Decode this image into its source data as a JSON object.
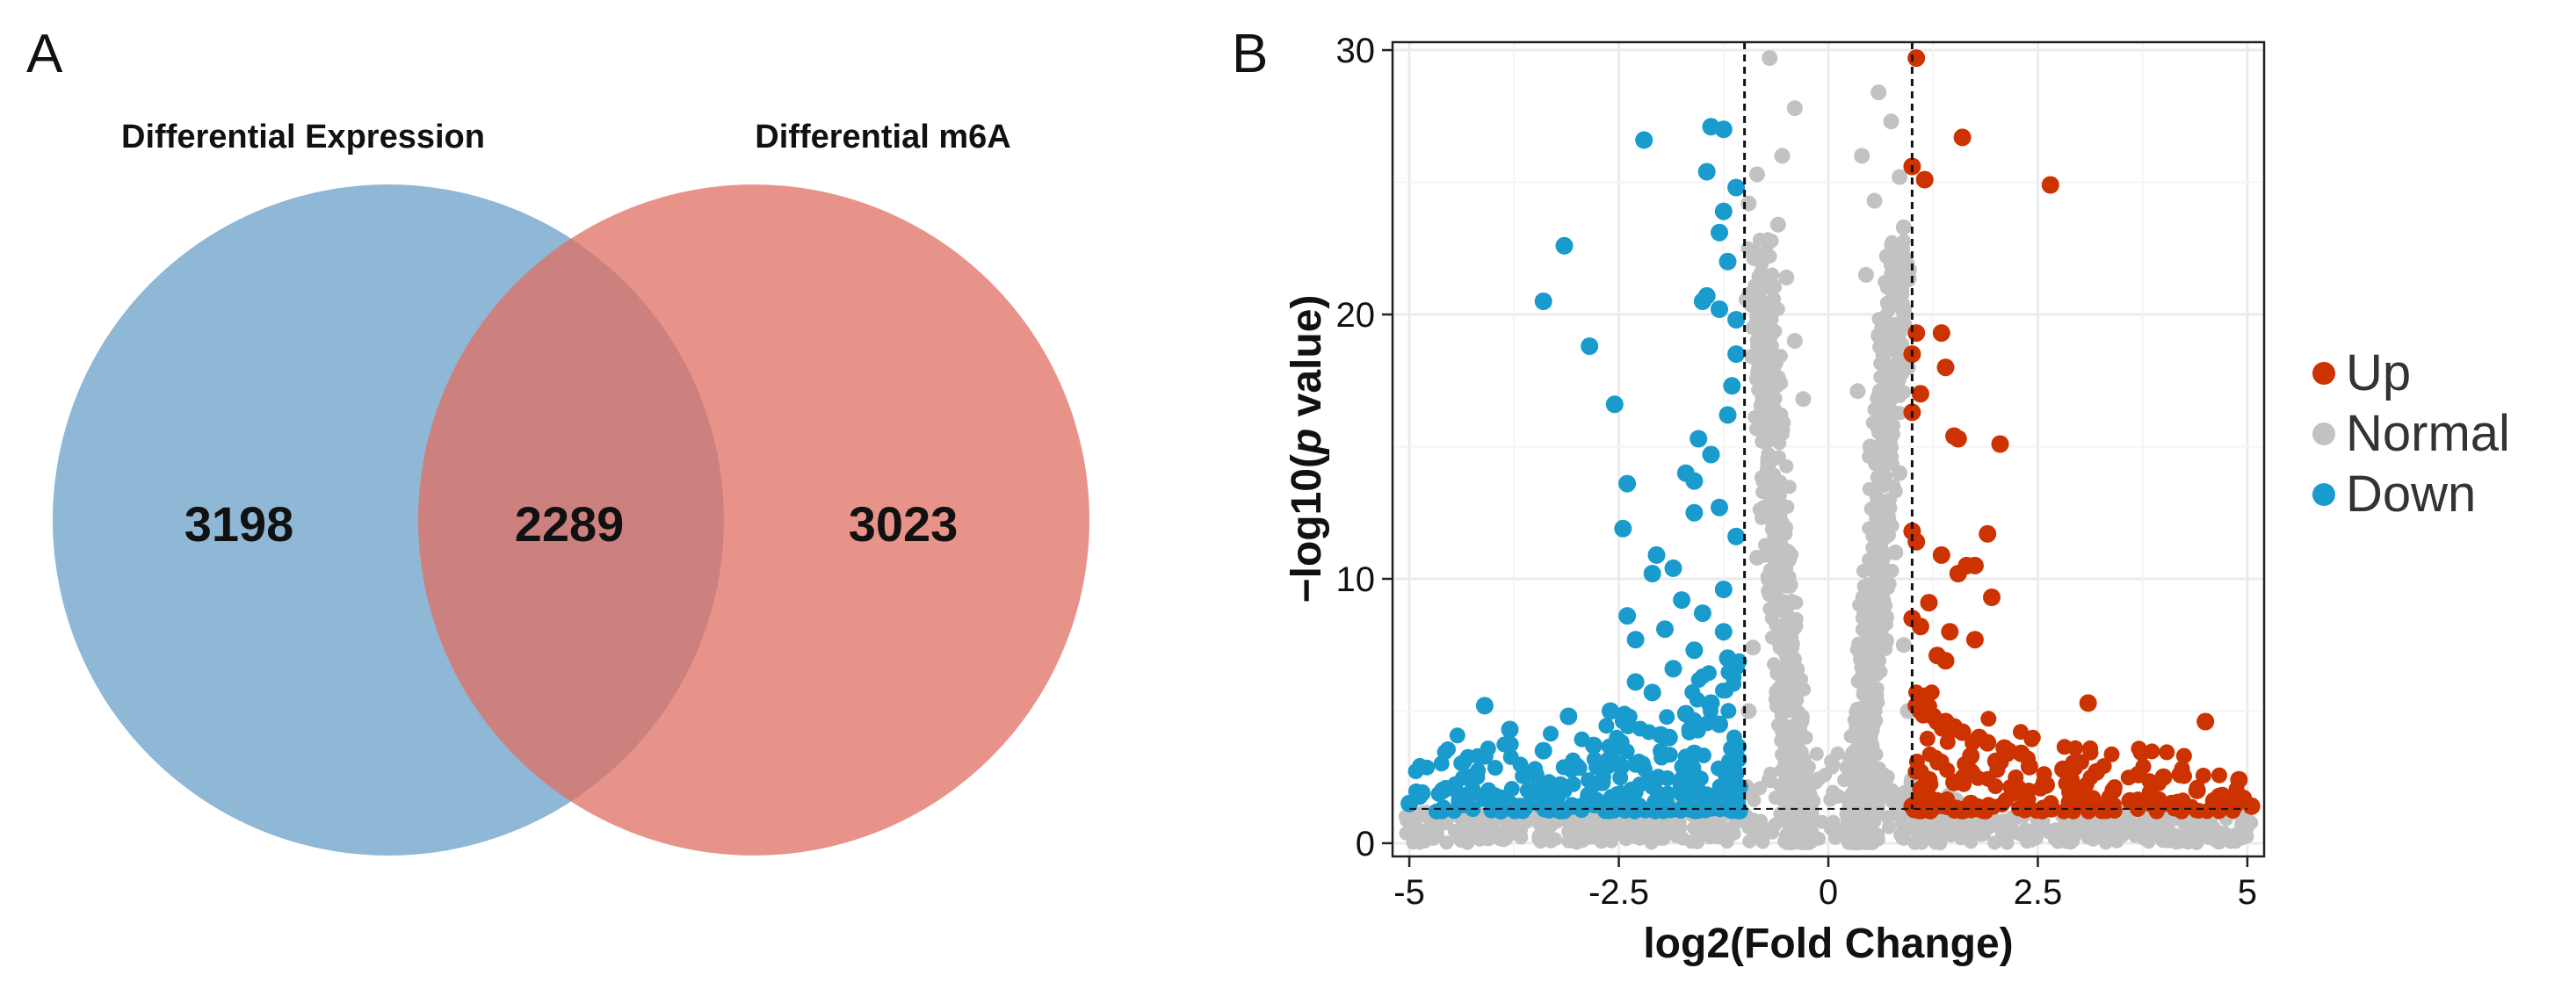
{
  "panels": {
    "a_label": "A",
    "b_label": "B"
  },
  "colors": {
    "venn_left": "#6a9fc8",
    "venn_right": "#e06f62",
    "up": "#cc3300",
    "normal": "#c2c2c2",
    "down": "#1a9bcd"
  },
  "chart_data": [
    {
      "type": "venn",
      "sets": [
        {
          "name": "Differential Expression",
          "only_count": "3198"
        },
        {
          "name": "Differential m6A",
          "only_count": "3023"
        }
      ],
      "intersection": "2289"
    },
    {
      "type": "scatter",
      "title": "",
      "xlabel": "log2(Fold Change)",
      "ylabel_prefix": "−log10(",
      "ylabel_italic": "p",
      "ylabel_suffix": " value)",
      "xlim": [
        -5.2,
        5.2
      ],
      "ylim": [
        -0.5,
        30.3
      ],
      "x_ticks": [
        {
          "value": -5,
          "label": "-5"
        },
        {
          "value": -2.5,
          "label": "-2.5"
        },
        {
          "value": 0,
          "label": "0"
        },
        {
          "value": 2.5,
          "label": "2.5"
        },
        {
          "value": 5,
          "label": "5"
        }
      ],
      "y_ticks": [
        {
          "value": 0,
          "label": "0"
        },
        {
          "value": 10,
          "label": "10"
        },
        {
          "value": 20,
          "label": "20"
        },
        {
          "value": 30,
          "label": "30"
        }
      ],
      "thresholds": {
        "x": [
          -1,
          1
        ]
      },
      "grid": true,
      "legend": {
        "position": "right",
        "entries": [
          {
            "key": "up",
            "label": "Up"
          },
          {
            "key": "normal",
            "label": "Normal"
          },
          {
            "key": "down",
            "label": "Down"
          }
        ]
      },
      "series": [
        {
          "name": "Up",
          "points": [
            [
              1.05,
              29.7
            ],
            [
              1.6,
              26.7
            ],
            [
              2.65,
              24.9
            ],
            [
              1.15,
              25.1
            ],
            [
              1.0,
              25.6
            ],
            [
              1.0,
              18.5
            ],
            [
              1.05,
              19.3
            ],
            [
              1.35,
              19.3
            ],
            [
              1.4,
              18.0
            ],
            [
              1.1,
              17.0
            ],
            [
              1.0,
              16.3
            ],
            [
              1.5,
              15.4
            ],
            [
              1.55,
              15.3
            ],
            [
              2.05,
              15.1
            ],
            [
              1.05,
              11.4
            ],
            [
              1.0,
              11.8
            ],
            [
              1.9,
              11.7
            ],
            [
              1.35,
              10.9
            ],
            [
              1.65,
              10.5
            ],
            [
              1.75,
              10.5
            ],
            [
              1.55,
              10.2
            ],
            [
              1.95,
              9.3
            ],
            [
              1.2,
              9.1
            ],
            [
              1.0,
              8.5
            ],
            [
              1.1,
              8.2
            ],
            [
              1.45,
              8.0
            ],
            [
              1.75,
              7.7
            ],
            [
              1.3,
              7.1
            ],
            [
              1.4,
              6.9
            ],
            [
              3.1,
              5.3
            ],
            [
              1.05,
              5.2
            ],
            [
              1.1,
              5.0
            ],
            [
              1.25,
              4.8
            ],
            [
              1.3,
              4.6
            ],
            [
              1.4,
              4.6
            ],
            [
              4.5,
              4.6
            ],
            [
              1.5,
              4.4
            ],
            [
              1.6,
              4.2
            ],
            [
              1.8,
              4.0
            ],
            [
              1.9,
              3.8
            ],
            [
              2.1,
              3.6
            ],
            [
              2.3,
              3.4
            ],
            [
              1.7,
              3.3
            ],
            [
              2.0,
              3.1
            ],
            [
              2.4,
              2.9
            ],
            [
              2.8,
              2.8
            ],
            [
              3.2,
              2.7
            ],
            [
              3.7,
              2.6
            ],
            [
              4.0,
              2.5
            ],
            [
              4.2,
              2.6
            ],
            [
              4.9,
              2.4
            ],
            [
              1.2,
              2.4
            ],
            [
              1.5,
              2.3
            ],
            [
              2.6,
              2.2
            ],
            [
              3.4,
              2.0
            ],
            [
              4.4,
              2.0
            ],
            [
              4.7,
              1.8
            ],
            [
              4.95,
              1.7
            ],
            [
              5.05,
              1.4
            ],
            [
              2.2,
              1.9
            ],
            [
              1.1,
              1.7
            ],
            [
              1.3,
              1.6
            ],
            [
              1.7,
              1.5
            ],
            [
              2.9,
              1.6
            ],
            [
              3.6,
              1.6
            ],
            [
              4.1,
              1.5
            ],
            [
              4.6,
              1.6
            ],
            [
              1.0,
              1.4
            ],
            [
              1.2,
              1.3
            ],
            [
              1.8,
              1.3
            ]
          ]
        },
        {
          "name": "Down",
          "points": [
            [
              -1.4,
              27.1
            ],
            [
              -1.25,
              27.0
            ],
            [
              -2.2,
              26.6
            ],
            [
              -1.45,
              25.4
            ],
            [
              -1.1,
              24.8
            ],
            [
              -1.25,
              23.9
            ],
            [
              -3.15,
              22.6
            ],
            [
              -1.3,
              23.1
            ],
            [
              -1.2,
              22.0
            ],
            [
              -1.45,
              20.7
            ],
            [
              -1.5,
              20.5
            ],
            [
              -3.4,
              20.5
            ],
            [
              -1.3,
              20.2
            ],
            [
              -1.1,
              19.8
            ],
            [
              -2.85,
              18.8
            ],
            [
              -1.1,
              18.5
            ],
            [
              -1.15,
              17.3
            ],
            [
              -2.55,
              16.6
            ],
            [
              -1.2,
              16.2
            ],
            [
              -1.55,
              15.3
            ],
            [
              -1.4,
              14.7
            ],
            [
              -1.6,
              13.7
            ],
            [
              -1.7,
              14.0
            ],
            [
              -2.4,
              13.6
            ],
            [
              -1.3,
              12.7
            ],
            [
              -1.6,
              12.5
            ],
            [
              -2.45,
              11.9
            ],
            [
              -1.1,
              11.6
            ],
            [
              -2.05,
              10.9
            ],
            [
              -1.85,
              10.4
            ],
            [
              -2.1,
              10.2
            ],
            [
              -1.25,
              9.6
            ],
            [
              -1.75,
              9.2
            ],
            [
              -2.4,
              8.6
            ],
            [
              -1.5,
              8.7
            ],
            [
              -1.95,
              8.1
            ],
            [
              -1.25,
              8.0
            ],
            [
              -2.3,
              7.7
            ],
            [
              -1.6,
              7.3
            ],
            [
              -1.2,
              7.0
            ],
            [
              -1.85,
              6.6
            ],
            [
              -2.3,
              6.1
            ],
            [
              -2.1,
              5.7
            ],
            [
              -4.1,
              5.2
            ],
            [
              -1.4,
              5.3
            ],
            [
              -2.6,
              5.0
            ],
            [
              -1.7,
              4.9
            ],
            [
              -3.1,
              4.8
            ],
            [
              -2.4,
              4.6
            ],
            [
              -1.3,
              4.5
            ],
            [
              -3.8,
              4.3
            ],
            [
              -2.0,
              4.1
            ],
            [
              -1.9,
              4.0
            ],
            [
              -2.8,
              3.7
            ],
            [
              -3.4,
              3.5
            ],
            [
              -1.6,
              3.4
            ],
            [
              -4.1,
              3.3
            ],
            [
              -2.3,
              3.0
            ],
            [
              -3.0,
              2.9
            ],
            [
              -1.2,
              2.8
            ],
            [
              -3.6,
              2.6
            ],
            [
              -4.3,
              2.5
            ],
            [
              -2.7,
              2.3
            ],
            [
              -3.2,
              2.2
            ],
            [
              -4.6,
              2.0
            ],
            [
              -4.85,
              1.9
            ],
            [
              -5.0,
              1.5
            ],
            [
              -4.4,
              1.6
            ],
            [
              -3.9,
              1.7
            ],
            [
              -2.0,
              1.8
            ]
          ]
        },
        {
          "name": "Normal",
          "points": [
            [
              -0.7,
              29.7
            ],
            [
              -0.4,
              27.8
            ],
            [
              -0.55,
              26.0
            ],
            [
              -0.85,
              25.3
            ],
            [
              -0.95,
              24.2
            ],
            [
              -0.6,
              23.4
            ],
            [
              -0.9,
              22.4
            ],
            [
              -0.5,
              21.4
            ],
            [
              -0.75,
              20.2
            ],
            [
              -0.4,
              19.0
            ],
            [
              -0.85,
              18.3
            ],
            [
              -0.6,
              17.6
            ],
            [
              -0.3,
              16.8
            ],
            [
              -0.75,
              15.4
            ],
            [
              0.6,
              28.4
            ],
            [
              0.75,
              27.3
            ],
            [
              0.4,
              26.0
            ],
            [
              0.85,
              25.2
            ],
            [
              0.55,
              24.3
            ],
            [
              0.9,
              23.3
            ],
            [
              0.7,
              22.2
            ],
            [
              0.45,
              21.5
            ],
            [
              0.8,
              20.4
            ],
            [
              0.6,
              19.2
            ],
            [
              0.95,
              18.0
            ],
            [
              0.35,
              17.1
            ],
            [
              0.7,
              16.2
            ],
            [
              0.5,
              15.0
            ],
            [
              0.85,
              14.0
            ],
            [
              -0.85,
              10.8
            ],
            [
              0.8,
              11.0
            ],
            [
              -0.9,
              7.4
            ],
            [
              0.9,
              7.5
            ],
            [
              -0.95,
              5.0
            ],
            [
              0.95,
              5.0
            ],
            [
              -1.5,
              0.8
            ],
            [
              1.5,
              0.8
            ],
            [
              -3.0,
              0.6
            ],
            [
              3.0,
              0.6
            ]
          ]
        }
      ]
    }
  ]
}
